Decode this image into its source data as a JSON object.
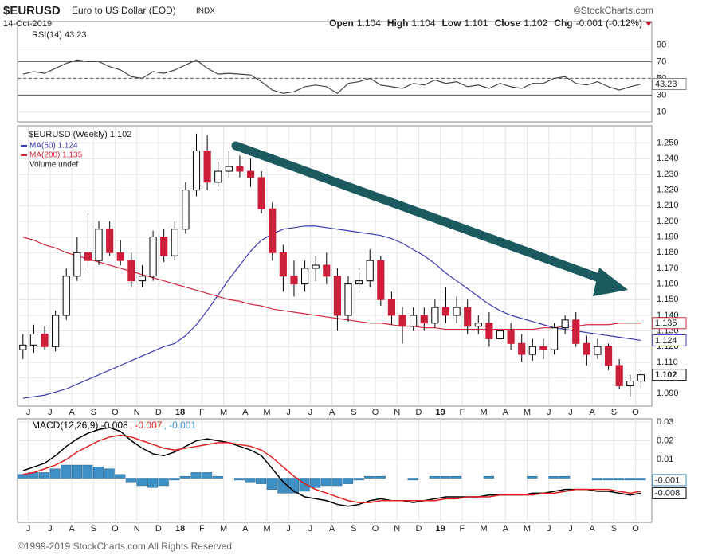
{
  "header": {
    "symbol": "$EURUSD",
    "name": "Euro to US Dollar (EOD)",
    "exchange": "INDX",
    "brand": "©StockCharts.com",
    "date": "14-Oct-2019",
    "quote": [
      {
        "label": "Open",
        "value": "1.104"
      },
      {
        "label": "High",
        "value": "1.104"
      },
      {
        "label": "Low",
        "value": "1.101"
      },
      {
        "label": "Close",
        "value": "1.102"
      },
      {
        "label": "Chg",
        "value": "-0.001 (-0.12%)"
      }
    ]
  },
  "footer": "©1999-2019 StockCharts.com All Rights Reserved",
  "chart_data": [
    {
      "type": "line",
      "title": "RSI(14) 43.23",
      "color": "#444444",
      "last_label": "43.23",
      "values": [
        55,
        58,
        56,
        62,
        68,
        72,
        70,
        70,
        64,
        60,
        52,
        50,
        58,
        56,
        60,
        66,
        72,
        62,
        55,
        56,
        55,
        54,
        46,
        36,
        32,
        34,
        40,
        42,
        40,
        32,
        44,
        46,
        50,
        42,
        40,
        38,
        44,
        42,
        48,
        44,
        46,
        40,
        42,
        38,
        44,
        40,
        38,
        44,
        44,
        50,
        52,
        44,
        42,
        46,
        40,
        36,
        40,
        43.23
      ],
      "levels": [
        30,
        50,
        70
      ],
      "xlim": [
        -0.5,
        58
      ],
      "ylim": [
        -2,
        118
      ],
      "yticks": [
        10,
        30,
        50,
        70,
        90
      ]
    },
    {
      "type": "candlestick",
      "title": "$EURUSD (Weekly) 1.102",
      "last_label": "1.102",
      "note": "Volume undef",
      "up_color": "#000000",
      "down_color": "#cc1f3a",
      "open": [
        1.118,
        1.121,
        1.128,
        1.12,
        1.14,
        1.165,
        1.18,
        1.175,
        1.195,
        1.18,
        1.175,
        1.162,
        1.165,
        1.19,
        1.178,
        1.195,
        1.22,
        1.245,
        1.225,
        1.232,
        1.235,
        1.232,
        1.228,
        1.208,
        1.18,
        1.165,
        1.16,
        1.17,
        1.172,
        1.165,
        1.14,
        1.16,
        1.162,
        1.175,
        1.15,
        1.14,
        1.133,
        1.14,
        1.135,
        1.145,
        1.14,
        1.145,
        1.133,
        1.135,
        1.125,
        1.13,
        1.122,
        1.115,
        1.12,
        1.118,
        1.132,
        1.137,
        1.122,
        1.115,
        1.12,
        1.108,
        1.095,
        1.098
      ],
      "high": [
        1.128,
        1.134,
        1.133,
        1.143,
        1.17,
        1.19,
        1.205,
        1.2,
        1.2,
        1.188,
        1.18,
        1.172,
        1.194,
        1.195,
        1.2,
        1.225,
        1.256,
        1.255,
        1.238,
        1.245,
        1.242,
        1.24,
        1.232,
        1.212,
        1.185,
        1.175,
        1.175,
        1.178,
        1.18,
        1.17,
        1.165,
        1.17,
        1.182,
        1.178,
        1.155,
        1.145,
        1.145,
        1.145,
        1.15,
        1.158,
        1.152,
        1.15,
        1.14,
        1.142,
        1.133,
        1.135,
        1.128,
        1.125,
        1.125,
        1.135,
        1.14,
        1.142,
        1.127,
        1.125,
        1.122,
        1.112,
        1.102,
        1.105
      ],
      "low": [
        1.112,
        1.116,
        1.118,
        1.117,
        1.137,
        1.162,
        1.17,
        1.172,
        1.178,
        1.172,
        1.158,
        1.158,
        1.162,
        1.174,
        1.175,
        1.192,
        1.216,
        1.22,
        1.222,
        1.228,
        1.228,
        1.222,
        1.205,
        1.175,
        1.155,
        1.152,
        1.155,
        1.162,
        1.16,
        1.13,
        1.136,
        1.155,
        1.158,
        1.146,
        1.134,
        1.122,
        1.13,
        1.13,
        1.132,
        1.135,
        1.135,
        1.128,
        1.128,
        1.12,
        1.122,
        1.118,
        1.11,
        1.111,
        1.112,
        1.115,
        1.128,
        1.12,
        1.108,
        1.112,
        1.105,
        1.093,
        1.088,
        1.094
      ],
      "close": [
        1.121,
        1.128,
        1.12,
        1.14,
        1.165,
        1.18,
        1.175,
        1.195,
        1.18,
        1.175,
        1.162,
        1.165,
        1.19,
        1.178,
        1.195,
        1.22,
        1.245,
        1.225,
        1.232,
        1.235,
        1.232,
        1.228,
        1.208,
        1.18,
        1.165,
        1.16,
        1.17,
        1.172,
        1.165,
        1.14,
        1.16,
        1.162,
        1.175,
        1.15,
        1.14,
        1.133,
        1.14,
        1.135,
        1.145,
        1.14,
        1.145,
        1.133,
        1.135,
        1.125,
        1.13,
        1.122,
        1.115,
        1.12,
        1.118,
        1.132,
        1.137,
        1.122,
        1.115,
        1.12,
        1.108,
        1.095,
        1.098,
        1.102
      ],
      "series": [
        {
          "name": "MA(50) 1.124",
          "color": "#3a3ab0",
          "last_label": "1.124",
          "values": [
            1.087,
            1.088,
            1.089,
            1.091,
            1.093,
            1.096,
            1.099,
            1.102,
            1.105,
            1.108,
            1.111,
            1.114,
            1.117,
            1.12,
            1.122,
            1.127,
            1.134,
            1.143,
            1.153,
            1.163,
            1.172,
            1.181,
            1.188,
            1.192,
            1.195,
            1.196,
            1.197,
            1.197,
            1.196,
            1.195,
            1.194,
            1.193,
            1.192,
            1.191,
            1.189,
            1.186,
            1.182,
            1.178,
            1.173,
            1.167,
            1.162,
            1.157,
            1.152,
            1.147,
            1.143,
            1.14,
            1.138,
            1.136,
            1.134,
            1.132,
            1.131,
            1.13,
            1.129,
            1.128,
            1.127,
            1.126,
            1.125,
            1.124
          ]
        },
        {
          "name": "MA(200) 1.135",
          "color": "#d2283c",
          "last_label": "1.135",
          "values": [
            1.19,
            1.188,
            1.185,
            1.183,
            1.18,
            1.178,
            1.176,
            1.174,
            1.172,
            1.17,
            1.168,
            1.166,
            1.164,
            1.162,
            1.16,
            1.158,
            1.156,
            1.154,
            1.152,
            1.15,
            1.149,
            1.147,
            1.146,
            1.144,
            1.143,
            1.142,
            1.141,
            1.14,
            1.139,
            1.138,
            1.137,
            1.136,
            1.135,
            1.135,
            1.134,
            1.133,
            1.133,
            1.132,
            1.132,
            1.131,
            1.131,
            1.131,
            1.131,
            1.131,
            1.131,
            1.131,
            1.131,
            1.131,
            1.132,
            1.132,
            1.133,
            1.133,
            1.134,
            1.134,
            1.134,
            1.135,
            1.135,
            1.135
          ]
        }
      ],
      "xlim": [
        -0.5,
        58
      ],
      "ylim": [
        1.082,
        1.261
      ],
      "yticks": [
        {
          "value": 1.09,
          "label": "1.090"
        },
        {
          "value": 1.1,
          "label": "1.100"
        },
        {
          "value": 1.11,
          "label": "1.110"
        },
        {
          "value": 1.12,
          "label": "1.120"
        },
        {
          "value": 1.13,
          "label": "1.130"
        },
        {
          "value": 1.14,
          "label": "1.140"
        },
        {
          "value": 1.15,
          "label": "1.150"
        },
        {
          "value": 1.16,
          "label": "1.160"
        },
        {
          "value": 1.17,
          "label": "1.170"
        },
        {
          "value": 1.18,
          "label": "1.180"
        },
        {
          "value": 1.19,
          "label": "1.190"
        },
        {
          "value": 1.2,
          "label": "1.200"
        },
        {
          "value": 1.21,
          "label": "1.210"
        },
        {
          "value": 1.22,
          "label": "1.220"
        },
        {
          "value": 1.23,
          "label": "1.230"
        },
        {
          "value": 1.24,
          "label": "1.240"
        },
        {
          "value": 1.25,
          "label": "1.250"
        }
      ],
      "xticks": [
        {
          "value": 0.5,
          "label": "J"
        },
        {
          "value": 2.5,
          "label": "J"
        },
        {
          "value": 4.5,
          "label": "A"
        },
        {
          "value": 6.5,
          "label": "S"
        },
        {
          "value": 8.5,
          "label": "O"
        },
        {
          "value": 10.5,
          "label": "N"
        },
        {
          "value": 12.5,
          "label": "D"
        },
        {
          "value": 14.5,
          "label": "18"
        },
        {
          "value": 16.5,
          "label": "F"
        },
        {
          "value": 18.5,
          "label": "M"
        },
        {
          "value": 20.5,
          "label": "A"
        },
        {
          "value": 22.5,
          "label": "M"
        },
        {
          "value": 24.5,
          "label": "J"
        },
        {
          "value": 26.5,
          "label": "J"
        },
        {
          "value": 28.5,
          "label": "A"
        },
        {
          "value": 30.5,
          "label": "S"
        },
        {
          "value": 32.5,
          "label": "O"
        },
        {
          "value": 34.5,
          "label": "N"
        },
        {
          "value": 36.5,
          "label": "D"
        },
        {
          "value": 38.5,
          "label": "19"
        },
        {
          "value": 40.5,
          "label": "F"
        },
        {
          "value": 42.5,
          "label": "M"
        },
        {
          "value": 44.5,
          "label": "A"
        },
        {
          "value": 46.5,
          "label": "M"
        },
        {
          "value": 48.5,
          "label": "J"
        },
        {
          "value": 50.5,
          "label": "J"
        },
        {
          "value": 52.5,
          "label": "A"
        },
        {
          "value": 54.5,
          "label": "S"
        },
        {
          "value": 56.5,
          "label": "O"
        }
      ],
      "grid": true
    },
    {
      "type": "macd",
      "series": [
        {
          "name": "MACD(12,26,9) -0.008",
          "color": "#000000",
          "last_label": "-0.008",
          "values": [
            0.004,
            0.006,
            0.008,
            0.012,
            0.017,
            0.021,
            0.024,
            0.026,
            0.027,
            0.025,
            0.02,
            0.016,
            0.013,
            0.012,
            0.014,
            0.017,
            0.02,
            0.021,
            0.02,
            0.019,
            0.017,
            0.015,
            0.012,
            0.005,
            -0.002,
            -0.007,
            -0.01,
            -0.011,
            -0.012,
            -0.014,
            -0.015,
            -0.014,
            -0.012,
            -0.011,
            -0.012,
            -0.012,
            -0.013,
            -0.012,
            -0.011,
            -0.01,
            -0.01,
            -0.01,
            -0.01,
            -0.009,
            -0.009,
            -0.009,
            -0.009,
            -0.008,
            -0.008,
            -0.007,
            -0.006,
            -0.006,
            -0.006,
            -0.007,
            -0.007,
            -0.008,
            -0.009,
            -0.008
          ]
        },
        {
          "name": ", -0.007",
          "color": "#e02020",
          "values": [
            0.002,
            0.003,
            0.005,
            0.007,
            0.01,
            0.014,
            0.017,
            0.02,
            0.022,
            0.023,
            0.022,
            0.02,
            0.018,
            0.016,
            0.015,
            0.016,
            0.017,
            0.018,
            0.019,
            0.019,
            0.018,
            0.017,
            0.015,
            0.011,
            0.006,
            0.001,
            -0.003,
            -0.006,
            -0.008,
            -0.01,
            -0.012,
            -0.013,
            -0.013,
            -0.012,
            -0.012,
            -0.012,
            -0.012,
            -0.012,
            -0.012,
            -0.011,
            -0.011,
            -0.01,
            -0.01,
            -0.01,
            -0.009,
            -0.009,
            -0.009,
            -0.009,
            -0.008,
            -0.008,
            -0.007,
            -0.006,
            -0.006,
            -0.006,
            -0.006,
            -0.007,
            -0.008,
            -0.007
          ]
        },
        {
          "name": ", -0.001",
          "color": "#3d8fc4",
          "kind": "histogram",
          "last_label": "-0.001",
          "values": [
            0.002,
            0.003,
            0.003,
            0.005,
            0.007,
            0.007,
            0.007,
            0.006,
            0.005,
            0.002,
            -0.002,
            -0.004,
            -0.005,
            -0.004,
            -0.001,
            0.001,
            0.003,
            0.003,
            0.001,
            0.0,
            -0.001,
            -0.002,
            -0.003,
            -0.006,
            -0.008,
            -0.008,
            -0.007,
            -0.005,
            -0.004,
            -0.004,
            -0.003,
            -0.001,
            0.001,
            0.001,
            0.0,
            0.0,
            -0.001,
            0.0,
            0.001,
            0.001,
            0.001,
            0.0,
            0.0,
            0.001,
            0.0,
            0.0,
            0.0,
            0.001,
            0.0,
            0.001,
            0.001,
            0.0,
            0.0,
            -0.001,
            -0.001,
            -0.001,
            -0.001,
            -0.001
          ]
        }
      ],
      "xlim": [
        -0.5,
        58
      ],
      "ylim": [
        -0.0236,
        0.0317
      ],
      "yticks": [
        0.01,
        0.02,
        0.03
      ],
      "xticks": [
        {
          "value": 0.5,
          "label": "J"
        },
        {
          "value": 2.5,
          "label": "J"
        },
        {
          "value": 4.5,
          "label": "A"
        },
        {
          "value": 6.5,
          "label": "S"
        },
        {
          "value": 8.5,
          "label": "O"
        },
        {
          "value": 10.5,
          "label": "N"
        },
        {
          "value": 12.5,
          "label": "D"
        },
        {
          "value": 14.5,
          "label": "18"
        },
        {
          "value": 16.5,
          "label": "F"
        },
        {
          "value": 18.5,
          "label": "M"
        },
        {
          "value": 20.5,
          "label": "A"
        },
        {
          "value": 22.5,
          "label": "M"
        },
        {
          "value": 24.5,
          "label": "J"
        },
        {
          "value": 26.5,
          "label": "J"
        },
        {
          "value": 28.5,
          "label": "A"
        },
        {
          "value": 30.5,
          "label": "S"
        },
        {
          "value": 32.5,
          "label": "O"
        },
        {
          "value": 34.5,
          "label": "N"
        },
        {
          "value": 36.5,
          "label": "D"
        },
        {
          "value": 38.5,
          "label": "19"
        },
        {
          "value": 40.5,
          "label": "F"
        },
        {
          "value": 42.5,
          "label": "M"
        },
        {
          "value": 44.5,
          "label": "A"
        },
        {
          "value": 46.5,
          "label": "M"
        },
        {
          "value": 48.5,
          "label": "J"
        },
        {
          "value": 50.5,
          "label": "J"
        },
        {
          "value": 52.5,
          "label": "A"
        },
        {
          "value": 54.5,
          "label": "S"
        },
        {
          "value": 56.5,
          "label": "O"
        }
      ],
      "grid": true
    }
  ]
}
